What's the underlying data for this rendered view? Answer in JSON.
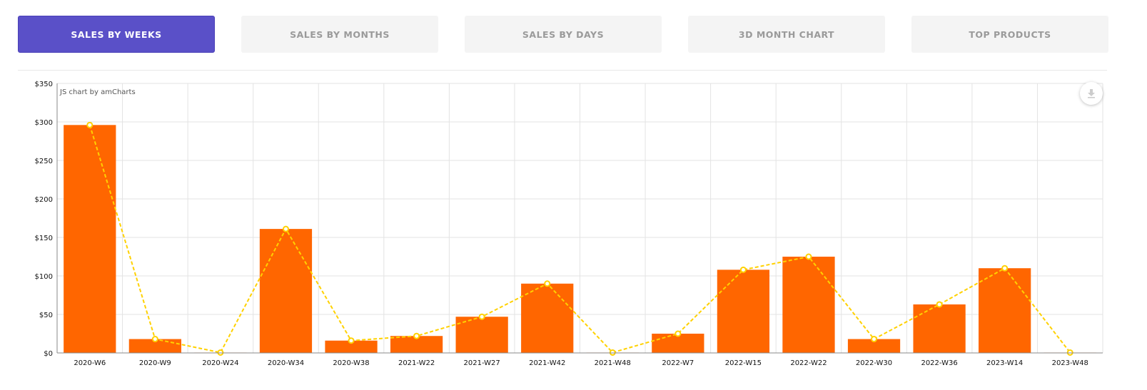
{
  "tabs": [
    {
      "label": "SALES BY WEEKS",
      "active": true
    },
    {
      "label": "SALES BY MONTHS",
      "active": false
    },
    {
      "label": "SALES BY DAYS",
      "active": false
    },
    {
      "label": "3D MONTH CHART",
      "active": false
    },
    {
      "label": "TOP PRODUCTS",
      "active": false
    }
  ],
  "chart": {
    "credit": "JS chart by amCharts",
    "download_icon": "download-icon"
  },
  "colors": {
    "active_tab": "#5a50c8",
    "bar": "#ff6600",
    "line": "#ffd100"
  },
  "chart_data": {
    "type": "bar",
    "categories": [
      "2020-W6",
      "2020-W9",
      "2020-W24",
      "2020-W34",
      "2020-W38",
      "2021-W22",
      "2021-W27",
      "2021-W42",
      "2021-W48",
      "2022-W7",
      "2022-W15",
      "2022-W22",
      "2022-W30",
      "2022-W36",
      "2023-W14",
      "2023-W48"
    ],
    "series": [
      {
        "type": "bar",
        "values": [
          296,
          18,
          0.5,
          161,
          16,
          22,
          47,
          90,
          0.5,
          25,
          108,
          125,
          18,
          63,
          110,
          0.5
        ]
      },
      {
        "type": "line",
        "dashed": true,
        "values": [
          296,
          18,
          0.5,
          161,
          16,
          22,
          47,
          90,
          0.5,
          25,
          108,
          125,
          18,
          63,
          110,
          0.5
        ]
      }
    ],
    "yticks": [
      "$0",
      "$50",
      "$100",
      "$150",
      "$200",
      "$250",
      "$300",
      "$350"
    ],
    "ylim": [
      0,
      350
    ],
    "grid": true,
    "xlabel": "",
    "ylabel": ""
  }
}
